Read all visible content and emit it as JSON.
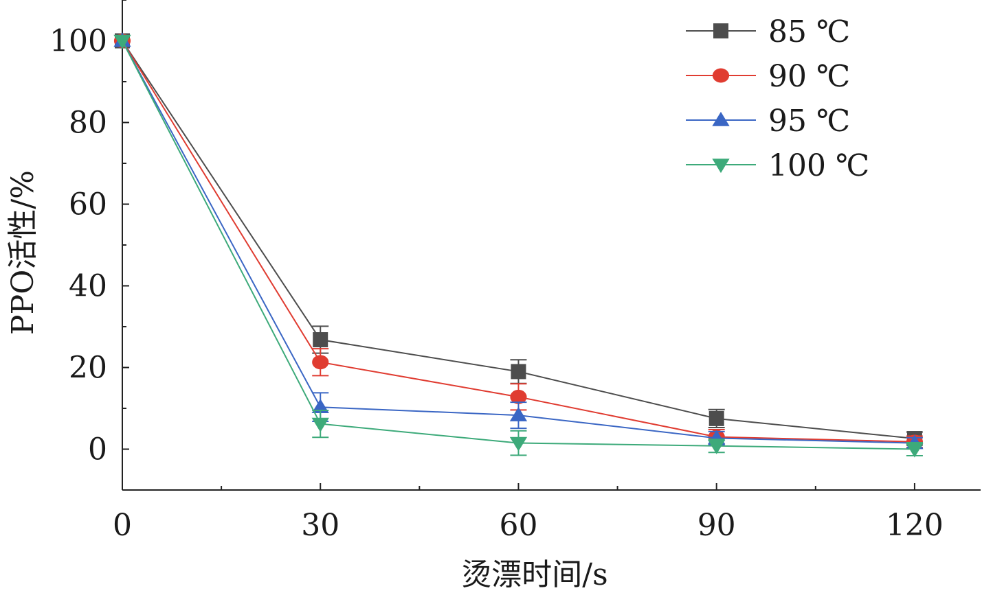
{
  "chart_data": {
    "type": "line",
    "title": "",
    "xlabel": "烫漂时间/s",
    "ylabel": "PPO活性/%",
    "x": [
      0,
      30,
      60,
      90,
      120
    ],
    "xlim": [
      0,
      130
    ],
    "ylim": [
      -10,
      110
    ],
    "xticks": [
      0,
      30,
      60,
      90,
      120
    ],
    "yticks": [
      0,
      20,
      40,
      60,
      80,
      100
    ],
    "grid": false,
    "legend_position": "top-right",
    "series": [
      {
        "name": "85 ℃",
        "color": "#4d4d4d",
        "marker": "square",
        "values": [
          100,
          26.8,
          19.0,
          7.5,
          2.6
        ],
        "errors": [
          0,
          3.3,
          2.9,
          2.2,
          1.6
        ]
      },
      {
        "name": "90 ℃",
        "color": "#e03c31",
        "marker": "circle",
        "values": [
          100,
          21.3,
          12.8,
          3.0,
          1.8
        ],
        "errors": [
          0,
          3.3,
          3.2,
          1.8,
          1.4
        ]
      },
      {
        "name": "95 ℃",
        "color": "#3a66c4",
        "marker": "triangle-up",
        "values": [
          100,
          10.3,
          8.3,
          2.7,
          1.5
        ],
        "errors": [
          0,
          3.5,
          3.2,
          1.6,
          1.3
        ]
      },
      {
        "name": "100 ℃",
        "color": "#3daa7a",
        "marker": "triangle-down",
        "values": [
          100,
          6.2,
          1.5,
          0.8,
          0.0
        ],
        "errors": [
          0,
          3.3,
          3.0,
          1.6,
          1.6
        ]
      }
    ]
  }
}
